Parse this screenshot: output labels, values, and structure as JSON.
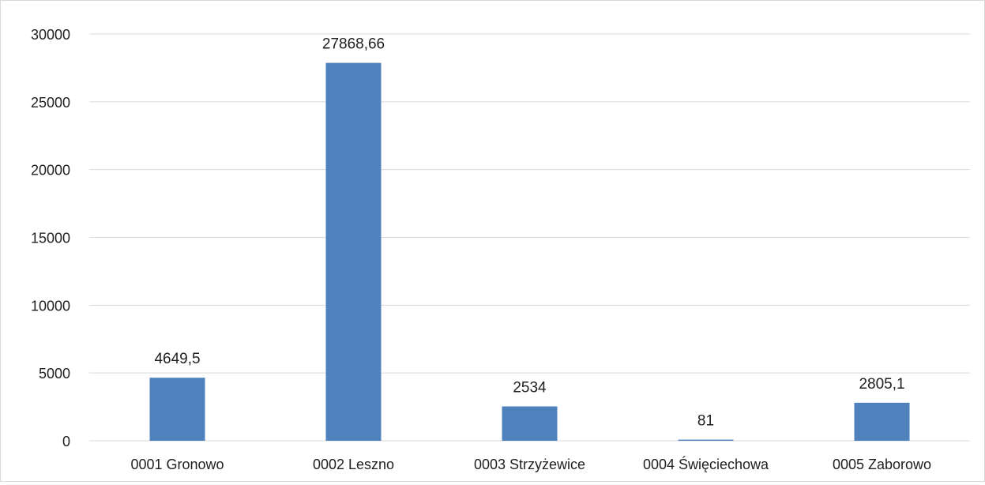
{
  "chart_data": {
    "type": "bar",
    "categories": [
      "0001 Gronowo",
      "0002 Leszno",
      "0003 Strzyżewice",
      "0004 Święciechowa",
      "0005 Zaborowo"
    ],
    "values": [
      4649.5,
      27868.66,
      2534,
      81,
      2805.1
    ],
    "value_labels": [
      "4649,5",
      "27868,66",
      "2534",
      "81",
      "2805,1"
    ],
    "y_ticks": [
      0,
      5000,
      10000,
      15000,
      20000,
      25000,
      30000
    ],
    "ylim": [
      0,
      30000
    ],
    "grid": true,
    "legend": "none",
    "bar_color": "#4f81bd",
    "grid_color": "#d9d9d9"
  }
}
